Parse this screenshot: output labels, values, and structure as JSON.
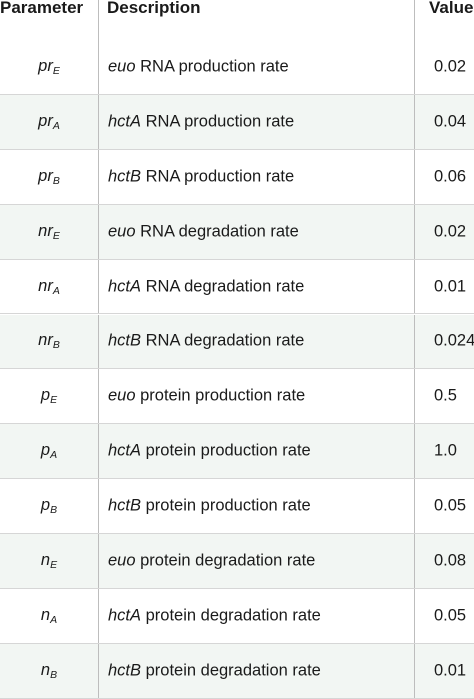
{
  "header": {
    "parameter": "Parameter",
    "description": "Description",
    "value": "Value"
  },
  "rows": [
    {
      "param_base": "pr",
      "param_sub": "E",
      "gene": "euo",
      "desc_rest": " RNA production rate",
      "value": "0.02"
    },
    {
      "param_base": "pr",
      "param_sub": "A",
      "gene": "hctA",
      "desc_rest": " RNA production rate",
      "value": "0.04"
    },
    {
      "param_base": "pr",
      "param_sub": "B",
      "gene": "hctB",
      "desc_rest": " RNA production rate",
      "value": "0.06"
    },
    {
      "param_base": "nr",
      "param_sub": "E",
      "gene": "euo",
      "desc_rest": " RNA degradation rate",
      "value": "0.02"
    },
    {
      "param_base": "nr",
      "param_sub": "A",
      "gene": "hctA",
      "desc_rest": " RNA degradation rate",
      "value": "0.01"
    },
    {
      "param_base": "nr",
      "param_sub": "B",
      "gene": "hctB",
      "desc_rest": " RNA degradation rate",
      "value": "0.024"
    },
    {
      "param_base": "p",
      "param_sub": "E",
      "gene": "euo",
      "desc_rest": " protein production rate",
      "value": "0.5"
    },
    {
      "param_base": "p",
      "param_sub": "A",
      "gene": "hctA",
      "desc_rest": " protein production rate",
      "value": "1.0"
    },
    {
      "param_base": "p",
      "param_sub": "B",
      "gene": "hctB",
      "desc_rest": " protein production rate",
      "value": "0.05"
    },
    {
      "param_base": "n",
      "param_sub": "E",
      "gene": "euo",
      "desc_rest": " protein degradation rate",
      "value": "0.08"
    },
    {
      "param_base": "n",
      "param_sub": "A",
      "gene": "hctA",
      "desc_rest": " protein degradation rate",
      "value": "0.05"
    },
    {
      "param_base": "n",
      "param_sub": "B",
      "gene": "hctB",
      "desc_rest": " protein degradation rate",
      "value": "0.01"
    }
  ]
}
